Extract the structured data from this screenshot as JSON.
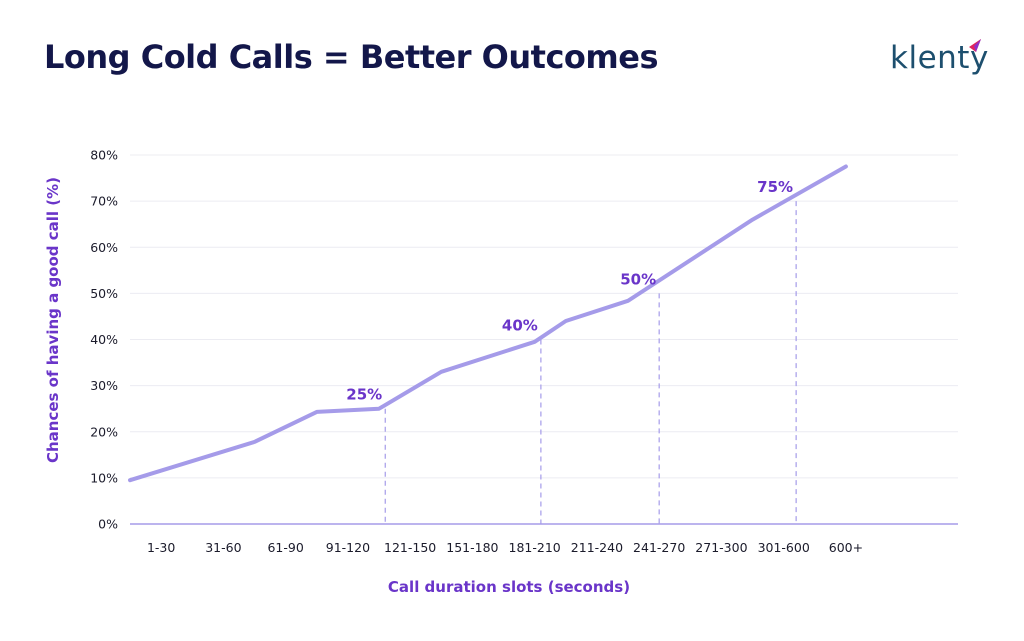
{
  "header": {
    "title": "Long Cold Calls = Better Outcomes",
    "logo_text": "klenty"
  },
  "colors": {
    "line": "#a59be9",
    "accent": "#6a35c9",
    "title": "#13174a",
    "grid": "#ececf2",
    "dashed": "#a59be9",
    "logo": "#1d4f6e",
    "logo_mark": "#e0245e"
  },
  "chart_data": {
    "type": "line",
    "title": "Long Cold Calls = Better Outcomes",
    "xlabel": "Call duration slots (seconds)",
    "ylabel": "Chances of having a good call (%)",
    "categories": [
      "1-30",
      "31-60",
      "61-90",
      "91-120",
      "121-150",
      "151-180",
      "181-210",
      "211-240",
      "241-270",
      "271-300",
      "301-600",
      "600+"
    ],
    "x": [
      1,
      2,
      3,
      4,
      5,
      6,
      7,
      8,
      9,
      10,
      11,
      12
    ],
    "series": [
      {
        "points": [
          [
            0.5,
            9.5
          ],
          [
            2.5,
            17.8
          ],
          [
            3.5,
            24.3
          ],
          [
            4.5,
            25
          ],
          [
            5.5,
            33
          ],
          [
            7.0,
            39.5
          ],
          [
            7.5,
            44
          ],
          [
            8.5,
            48.4
          ],
          [
            10.5,
            66
          ],
          [
            12,
            77.5
          ]
        ]
      }
    ],
    "annotations": [
      {
        "label": "25%",
        "x": 4.6,
        "y": 25
      },
      {
        "label": "40%",
        "x": 7.1,
        "y": 40
      },
      {
        "label": "50%",
        "x": 9.0,
        "y": 50
      },
      {
        "label": "75%",
        "x": 11.2,
        "y": 70
      }
    ],
    "xlim": [
      0.5,
      13.8
    ],
    "ylim": [
      0,
      80
    ],
    "yticks": [
      0,
      10,
      20,
      30,
      40,
      50,
      60,
      70,
      80
    ],
    "ytick_labels": [
      "0%",
      "10%",
      "20%",
      "30%",
      "40%",
      "50%",
      "60%",
      "70%",
      "80%"
    ],
    "grid": true,
    "legend": "none"
  }
}
